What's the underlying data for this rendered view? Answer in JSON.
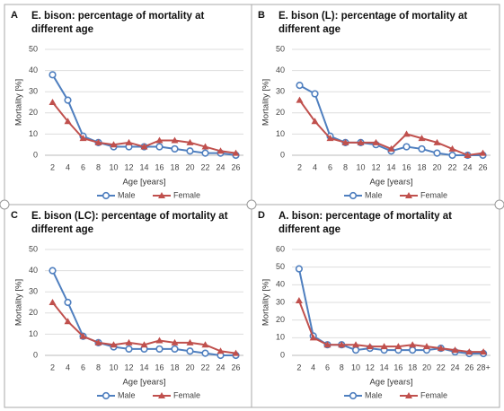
{
  "chart_data": [
    {
      "type": "line",
      "panel_label": "A",
      "title": [
        "E. bison: percentage of mortality at",
        "different age"
      ],
      "x_label": "Age [years]",
      "y_label": "Mortality [%]",
      "categories": [
        "2",
        "4",
        "6",
        "8",
        "10",
        "12",
        "14",
        "16",
        "18",
        "20",
        "22",
        "24",
        "26"
      ],
      "ylim": [
        0,
        50
      ],
      "yticks": [
        0,
        10,
        20,
        30,
        40,
        50
      ],
      "grid": true,
      "series": [
        {
          "name": "Male",
          "color": "#4f7fbf",
          "marker": "circle",
          "values": [
            38,
            26,
            9,
            6,
            4,
            4,
            4,
            4,
            3,
            2,
            1,
            1,
            0
          ]
        },
        {
          "name": "Female",
          "color": "#c0504d",
          "marker": "triangle",
          "values": [
            25,
            16,
            8,
            6,
            5,
            6,
            4,
            7,
            7,
            6,
            4,
            2,
            1
          ]
        }
      ]
    },
    {
      "type": "line",
      "panel_label": "B",
      "title": [
        "E. bison (L): percentage of mortality at",
        "different age"
      ],
      "x_label": "Age [years]",
      "y_label": "Mortality [%]",
      "categories": [
        "2",
        "4",
        "6",
        "8",
        "10",
        "12",
        "14",
        "16",
        "18",
        "20",
        "22",
        "24",
        "26"
      ],
      "ylim": [
        0,
        50
      ],
      "yticks": [
        0,
        10,
        20,
        30,
        40,
        50
      ],
      "grid": true,
      "series": [
        {
          "name": "Male",
          "color": "#4f7fbf",
          "marker": "circle",
          "values": [
            33,
            29,
            9,
            6,
            6,
            5,
            2,
            4,
            3,
            1,
            0,
            0,
            0
          ]
        },
        {
          "name": "Female",
          "color": "#c0504d",
          "marker": "triangle",
          "values": [
            26,
            16,
            8,
            6,
            6,
            6,
            3,
            10,
            8,
            6,
            3,
            0,
            1
          ]
        }
      ]
    },
    {
      "type": "line",
      "panel_label": "C",
      "title": [
        "E. bison (LC): percentage of mortality at",
        "different age"
      ],
      "x_label": "Age [years]",
      "y_label": "Mortality [%]",
      "categories": [
        "2",
        "4",
        "6",
        "8",
        "10",
        "12",
        "14",
        "16",
        "18",
        "20",
        "22",
        "24",
        "26"
      ],
      "ylim": [
        0,
        50
      ],
      "yticks": [
        0,
        10,
        20,
        30,
        40,
        50
      ],
      "grid": true,
      "series": [
        {
          "name": "Male",
          "color": "#4f7fbf",
          "marker": "circle",
          "values": [
            40,
            25,
            9,
            6,
            4,
            3,
            3,
            3,
            3,
            2,
            1,
            0,
            0
          ]
        },
        {
          "name": "Female",
          "color": "#c0504d",
          "marker": "triangle",
          "values": [
            25,
            16,
            9,
            6,
            5,
            6,
            5,
            7,
            6,
            6,
            5,
            2,
            1
          ]
        }
      ]
    },
    {
      "type": "line",
      "panel_label": "D",
      "title": [
        "A. bison: percentage of mortality at",
        "different age"
      ],
      "x_label": "Age [years]",
      "y_label": "Mortality [%]",
      "categories": [
        "2",
        "4",
        "6",
        "8",
        "10",
        "12",
        "14",
        "16",
        "18",
        "20",
        "22",
        "24",
        "26",
        "28+"
      ],
      "ylim": [
        0,
        60
      ],
      "yticks": [
        0,
        10,
        20,
        30,
        40,
        50,
        60
      ],
      "grid": true,
      "series": [
        {
          "name": "Male",
          "color": "#4f7fbf",
          "marker": "circle",
          "values": [
            49,
            11,
            6,
            6,
            3,
            4,
            3,
            3,
            3,
            3,
            4,
            2,
            1,
            1
          ]
        },
        {
          "name": "Female",
          "color": "#c0504d",
          "marker": "triangle",
          "values": [
            31,
            10,
            6,
            6,
            6,
            5,
            5,
            5,
            6,
            5,
            4,
            3,
            2,
            2
          ]
        }
      ]
    }
  ]
}
